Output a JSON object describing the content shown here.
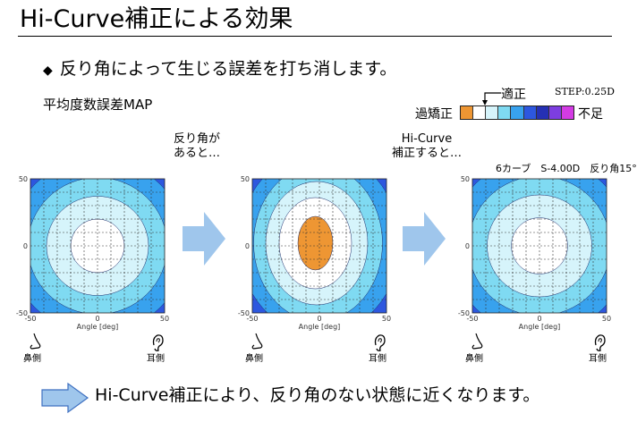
{
  "title": "Hi-Curve補正による効果",
  "bullet": "反り角によって生じる誤差を打ち消します。",
  "map_title": "平均度数誤差MAP",
  "caption_left": [
    "反り角が",
    "あると…"
  ],
  "caption_right": [
    "Hi-Curve",
    "補正すると…"
  ],
  "spec": "6カーブ　S-4.00D　反り角15°",
  "legend": {
    "fit_label": "適正",
    "step": "STEP:0.25D",
    "over_label": "過矯正",
    "under_label": "不足",
    "colors": [
      "#ee9633",
      "#ffffff",
      "#d6f4fb",
      "#7fdaf2",
      "#38a2ee",
      "#2d57df",
      "#2530b4",
      "#7d3ee0",
      "#d33be4"
    ]
  },
  "axis": {
    "xlabel": "Angle [deg]",
    "ticks": [
      "-50",
      "0",
      "50"
    ]
  },
  "side_labels": {
    "nose": "鼻側",
    "ear": "耳側"
  },
  "bottom_text": "Hi-Curve補正により、反り角のない状態に近くなります。",
  "chart_data": [
    {
      "type": "heatmap",
      "name_hint": "before",
      "xlabel": "Angle [deg]",
      "xlim": [
        -50,
        50
      ],
      "ylim": [
        -50,
        50
      ],
      "grid": true,
      "contours": [
        {
          "level": "white",
          "rx": 20,
          "ry": 20,
          "cx": 0,
          "cy": 0
        },
        {
          "level": "pale",
          "rx": 38,
          "ry": 37,
          "cx": 0,
          "cy": 0
        },
        {
          "level": "light",
          "rx": 52,
          "ry": 51,
          "cx": 0,
          "cy": 0
        },
        {
          "level": "mid",
          "rx": 66,
          "ry": 65,
          "cx": 0,
          "cy": 0
        }
      ]
    },
    {
      "type": "heatmap",
      "name_hint": "tilted",
      "xlabel": "Angle [deg]",
      "xlim": [
        -50,
        50
      ],
      "ylim": [
        -50,
        50
      ],
      "grid": true,
      "contours": [
        {
          "level": "orange",
          "rx": 13,
          "ry": 20,
          "cx": -3,
          "cy": 2
        },
        {
          "level": "white",
          "rx": 27,
          "ry": 34,
          "cx": -3,
          "cy": 2
        },
        {
          "level": "pale",
          "rx": 38,
          "ry": 46,
          "cx": -2,
          "cy": 2
        },
        {
          "level": "light",
          "rx": 48,
          "ry": 58,
          "cx": -1,
          "cy": 2
        },
        {
          "level": "mid",
          "rx": 60,
          "ry": 68,
          "cx": 0,
          "cy": 2
        },
        {
          "level": "dark",
          "rx": 72,
          "ry": 80,
          "cx": 0,
          "cy": 2
        }
      ]
    },
    {
      "type": "heatmap",
      "name_hint": "corrected",
      "xlabel": "Angle [deg]",
      "xlim": [
        -50,
        50
      ],
      "ylim": [
        -50,
        50
      ],
      "grid": true,
      "contours": [
        {
          "level": "white",
          "rx": 21,
          "ry": 21,
          "cx": 0,
          "cy": 0
        },
        {
          "level": "pale",
          "rx": 39,
          "ry": 38,
          "cx": 0,
          "cy": 0
        },
        {
          "level": "light",
          "rx": 53,
          "ry": 52,
          "cx": 0,
          "cy": 0
        },
        {
          "level": "mid",
          "rx": 67,
          "ry": 66,
          "cx": 0,
          "cy": 0
        }
      ]
    }
  ]
}
